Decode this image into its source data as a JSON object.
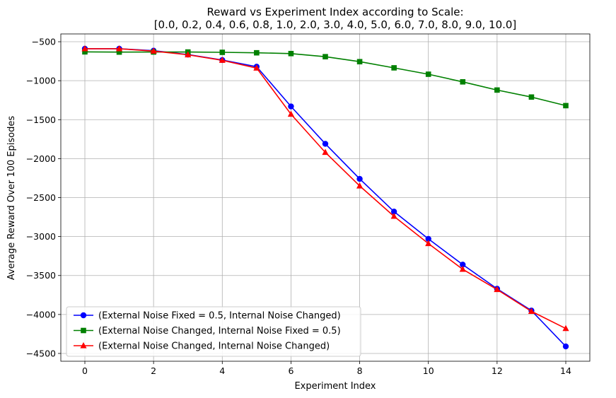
{
  "chart_data": {
    "type": "line",
    "title_line1": "Reward vs Experiment Index according to Scale:",
    "title_line2": "[0.0, 0.2, 0.4, 0.6, 0.8, 1.0, 2.0, 3.0, 4.0, 5.0, 6.0, 7.0, 8.0, 9.0, 10.0]",
    "xlabel": "Experiment Index",
    "ylabel": "Average Reward Over 100 Episodes",
    "xlim": [
      -0.7,
      14.7
    ],
    "ylim": [
      -4600,
      -400
    ],
    "xticks": [
      0,
      2,
      4,
      6,
      8,
      10,
      12,
      14
    ],
    "yticks": [
      -500,
      -1000,
      -1500,
      -2000,
      -2500,
      -3000,
      -3500,
      -4000,
      -4500
    ],
    "xtick_labels": [
      "0",
      "2",
      "4",
      "6",
      "8",
      "10",
      "12",
      "14"
    ],
    "ytick_labels": [
      "−500",
      "−1000",
      "−1500",
      "−2000",
      "−2500",
      "−3000",
      "−3500",
      "−4000",
      "−4500"
    ],
    "grid": true,
    "legend_position": "lower-left",
    "x": [
      0,
      1,
      2,
      3,
      4,
      5,
      6,
      7,
      8,
      9,
      10,
      11,
      12,
      13,
      14
    ],
    "series": [
      {
        "name": "(External Noise Fixed = 0.5, Internal Noise Changed)",
        "color": "#0000ff",
        "marker": "circle",
        "values": [
          -590,
          -590,
          -615,
          -665,
          -735,
          -820,
          -1330,
          -1810,
          -2260,
          -2680,
          -3030,
          -3360,
          -3670,
          -3950,
          -4410
        ]
      },
      {
        "name": "(External Noise Changed, Internal Noise Fixed = 0.5)",
        "color": "#008000",
        "marker": "square",
        "values": [
          -630,
          -633,
          -632,
          -632,
          -636,
          -642,
          -652,
          -692,
          -756,
          -835,
          -917,
          -1015,
          -1120,
          -1210,
          -1320
        ]
      },
      {
        "name": "(External Noise Changed, Internal Noise Changed)",
        "color": "#ff0000",
        "marker": "triangle",
        "values": [
          -590,
          -590,
          -620,
          -668,
          -738,
          -838,
          -1430,
          -1920,
          -2350,
          -2740,
          -3090,
          -3420,
          -3680,
          -3960,
          -4180
        ]
      }
    ]
  }
}
